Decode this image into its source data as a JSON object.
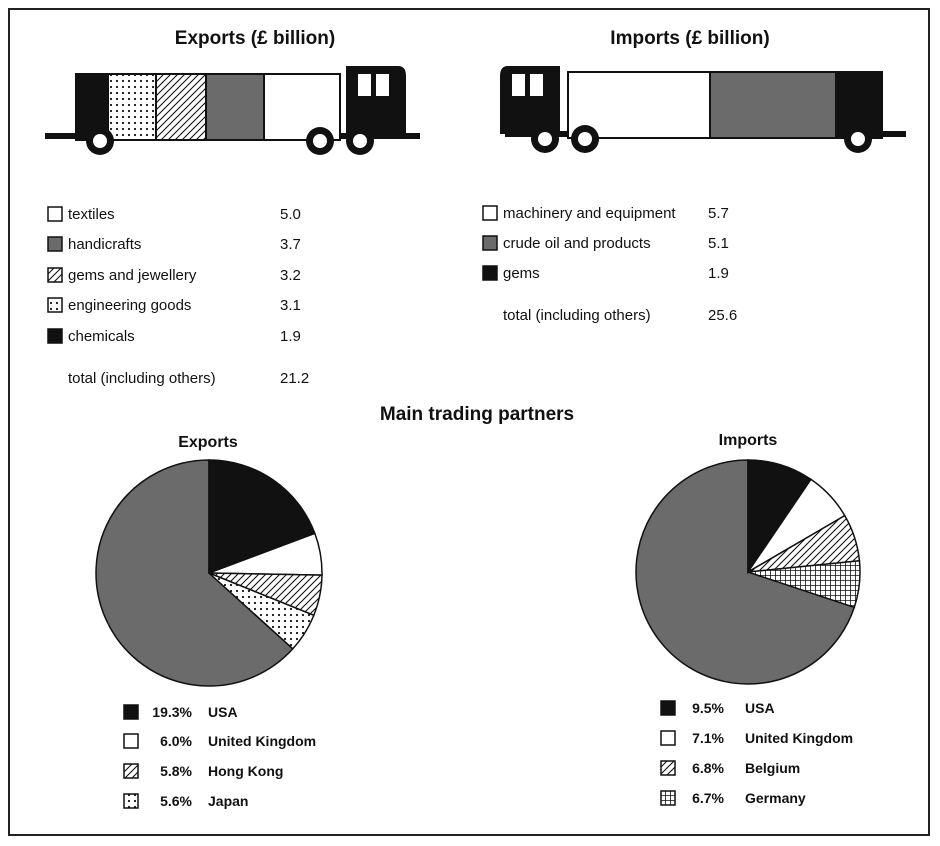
{
  "colors": {
    "dark_grey": "#6b6b6b",
    "black": "#111111",
    "white": "#ffffff"
  },
  "chart_data": [
    {
      "type": "table",
      "title": "Exports (£ billion)",
      "items": [
        {
          "label": "textiles",
          "value": "5.0",
          "pattern": "white"
        },
        {
          "label": "handicrafts",
          "value": "3.7",
          "pattern": "grey"
        },
        {
          "label": "gems and jewellery",
          "value": "3.2",
          "pattern": "hatch"
        },
        {
          "label": "engineering goods",
          "value": "3.1",
          "pattern": "dots"
        },
        {
          "label": "chemicals",
          "value": "1.9",
          "pattern": "black"
        }
      ],
      "total_label": "total (including others)",
      "total_value": "21.2"
    },
    {
      "type": "table",
      "title": "Imports (£ billion)",
      "items": [
        {
          "label": "machinery and equipment",
          "value": "5.7",
          "pattern": "white"
        },
        {
          "label": "crude oil and products",
          "value": "5.1",
          "pattern": "grey"
        },
        {
          "label": "gems",
          "value": "1.9",
          "pattern": "black"
        }
      ],
      "total_label": "total (including others)",
      "total_value": "25.6"
    },
    {
      "type": "pie",
      "section_title": "Main trading partners",
      "title": "Exports",
      "slices": [
        {
          "label": "USA",
          "value": 19.3,
          "display": "19.3%",
          "pattern": "black"
        },
        {
          "label": "United Kingdom",
          "value": 6.0,
          "display": "6.0%",
          "pattern": "white"
        },
        {
          "label": "Hong Kong",
          "value": 5.8,
          "display": "5.8%",
          "pattern": "hatch"
        },
        {
          "label": "Japan",
          "value": 5.6,
          "display": "5.6%",
          "pattern": "dots"
        }
      ]
    },
    {
      "type": "pie",
      "title": "Imports",
      "slices": [
        {
          "label": "USA",
          "value": 9.5,
          "display": "9.5%",
          "pattern": "black"
        },
        {
          "label": "United Kingdom",
          "value": 7.1,
          "display": "7.1%",
          "pattern": "white"
        },
        {
          "label": "Belgium",
          "value": 6.8,
          "display": "6.8%",
          "pattern": "hatch"
        },
        {
          "label": "Germany",
          "value": 6.7,
          "display": "6.7%",
          "pattern": "grid"
        }
      ]
    }
  ]
}
